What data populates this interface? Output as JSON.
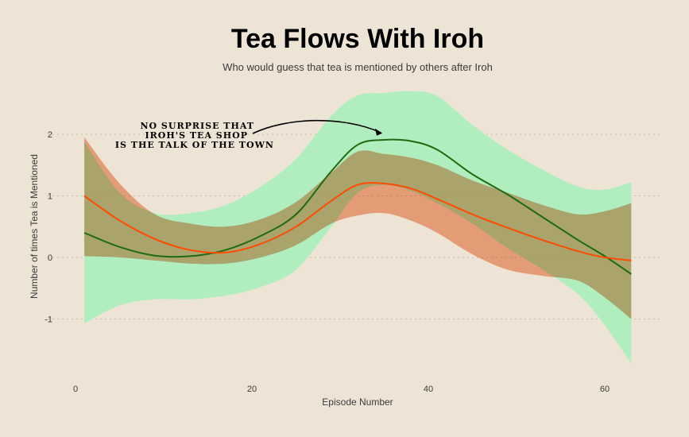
{
  "header": {
    "title": "Tea Flows With Iroh",
    "subtitle": "Who would guess that tea is mentioned by others after Iroh"
  },
  "chart_data": {
    "type": "area",
    "title": "Tea Flows With Iroh",
    "subtitle": "Who would guess that tea is mentioned by others after Iroh",
    "xlabel": "Episode Number",
    "ylabel": "Number of times Tea is Mentioned",
    "xlim": [
      -2,
      66
    ],
    "ylim": [
      -1.75,
      2.7
    ],
    "x_ticks": [
      0,
      20,
      40,
      60
    ],
    "y_ticks": [
      -1,
      0,
      1,
      2
    ],
    "x_tick_labels": [
      "0",
      "20",
      "40",
      "60"
    ],
    "y_tick_labels": [
      "-1",
      "0",
      "1",
      "2"
    ],
    "grid": "horizontal dotted",
    "x": [
      1,
      5,
      9,
      13,
      17,
      21,
      25,
      29,
      32,
      35,
      38,
      41,
      45,
      49,
      53,
      57,
      60,
      63
    ],
    "series": [
      {
        "color": "#1f6b10",
        "band_color": "#adeebe",
        "values": [
          0.4,
          0.17,
          0.03,
          0.02,
          0.12,
          0.35,
          0.7,
          1.4,
          1.83,
          1.91,
          1.89,
          1.75,
          1.35,
          1.02,
          0.65,
          0.28,
          0.02,
          -0.27
        ],
        "lower": [
          -1.07,
          -0.78,
          -0.68,
          -0.68,
          -0.62,
          -0.48,
          -0.2,
          0.5,
          1.05,
          1.18,
          1.08,
          0.88,
          0.55,
          0.15,
          -0.2,
          -0.6,
          -1.1,
          -1.72
        ],
        "upper": [
          1.88,
          1.05,
          0.72,
          0.72,
          0.85,
          1.15,
          1.6,
          2.3,
          2.63,
          2.67,
          2.7,
          2.62,
          2.15,
          1.75,
          1.42,
          1.15,
          1.1,
          1.22
        ]
      },
      {
        "color": "#ff4b00",
        "band_color": "#f4a17b",
        "values": [
          1.0,
          0.6,
          0.3,
          0.12,
          0.08,
          0.22,
          0.5,
          0.92,
          1.18,
          1.2,
          1.12,
          0.95,
          0.7,
          0.48,
          0.28,
          0.1,
          0.0,
          -0.05
        ],
        "lower": [
          0.02,
          0.0,
          -0.05,
          -0.1,
          -0.1,
          0.0,
          0.2,
          0.55,
          0.68,
          0.72,
          0.6,
          0.4,
          0.05,
          -0.2,
          -0.3,
          -0.38,
          -0.65,
          -1.0
        ],
        "upper": [
          1.95,
          1.2,
          0.7,
          0.55,
          0.5,
          0.62,
          0.9,
          1.38,
          1.72,
          1.68,
          1.62,
          1.5,
          1.25,
          1.05,
          0.85,
          0.7,
          0.75,
          0.88
        ]
      }
    ],
    "annotation": {
      "text_lines": [
        "No surprise that",
        "Iroh's tea shop",
        "is the talk of the town"
      ],
      "points_to": {
        "x": 35.5,
        "y": 1.9
      }
    }
  }
}
